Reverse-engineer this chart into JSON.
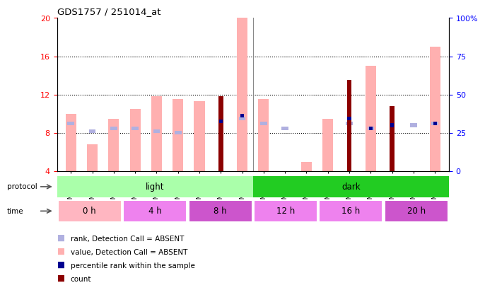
{
  "title": "GDS1757 / 251014_at",
  "samples": [
    "GSM77055",
    "GSM77056",
    "GSM77057",
    "GSM77058",
    "GSM77059",
    "GSM77060",
    "GSM77061",
    "GSM77062",
    "GSM77063",
    "GSM77064",
    "GSM77065",
    "GSM77066",
    "GSM77067",
    "GSM77068",
    "GSM77069",
    "GSM77070",
    "GSM77071",
    "GSM77072"
  ],
  "value_absent": [
    10.0,
    6.8,
    9.5,
    10.5,
    11.8,
    11.5,
    11.3,
    null,
    20.0,
    11.5,
    null,
    5.0,
    9.5,
    null,
    15.0,
    null,
    null,
    17.0
  ],
  "rank_absent": [
    9.0,
    8.2,
    8.5,
    8.5,
    8.2,
    8.0,
    null,
    null,
    9.5,
    9.0,
    8.5,
    null,
    null,
    9.0,
    8.5,
    null,
    8.8,
    9.0
  ],
  "count_val": [
    null,
    null,
    null,
    null,
    null,
    null,
    null,
    11.8,
    null,
    null,
    null,
    null,
    null,
    13.5,
    null,
    10.8,
    null,
    null
  ],
  "rank_val": [
    null,
    null,
    null,
    null,
    null,
    null,
    null,
    9.2,
    9.8,
    null,
    null,
    null,
    null,
    9.5,
    8.5,
    8.8,
    null,
    9.0
  ],
  "baseline": 4.0,
  "ylim_left": [
    4,
    20
  ],
  "ylim_right": [
    0,
    100
  ],
  "yticks_left": [
    4,
    8,
    12,
    16,
    20
  ],
  "yticks_right": [
    0,
    25,
    50,
    75,
    100
  ],
  "hlines": [
    8,
    12,
    16
  ],
  "color_value_absent": "#ffb0b0",
  "color_rank_absent": "#b0b0e0",
  "color_count": "#8b0000",
  "color_rank_present": "#000090",
  "protocol_light_color": "#aaffaa",
  "protocol_dark_color": "#22cc22",
  "time_colors": [
    "#ffb6c1",
    "#ee82ee",
    "#cc55cc",
    "#ee82ee",
    "#ee82ee",
    "#cc55cc"
  ],
  "time_labels": [
    "0 h",
    "4 h",
    "8 h",
    "12 h",
    "16 h",
    "20 h"
  ],
  "time_boundaries": [
    0,
    3,
    6,
    9,
    12,
    15,
    18
  ],
  "protocol_split": 9,
  "n_samples": 18,
  "bar_width": 0.5,
  "rank_bar_width": 0.32,
  "count_bar_width": 0.22
}
